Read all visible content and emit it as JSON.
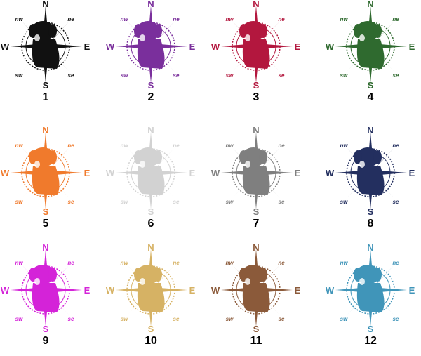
{
  "compass_letters": {
    "n": "N",
    "e": "E",
    "s": "S",
    "w": "W",
    "nw": "nw",
    "ne": "ne",
    "sw": "sw",
    "se": "se"
  },
  "variants": [
    {
      "number": "1",
      "color": "#111111"
    },
    {
      "number": "2",
      "color": "#7a2f9c"
    },
    {
      "number": "3",
      "color": "#b3173e"
    },
    {
      "number": "4",
      "color": "#2f6a2f"
    },
    {
      "number": "5",
      "color": "#f07a2c"
    },
    {
      "number": "6",
      "color": "#d2d2d2"
    },
    {
      "number": "7",
      "color": "#7f7f7f"
    },
    {
      "number": "8",
      "color": "#232f5f"
    },
    {
      "number": "9",
      "color": "#d423d8"
    },
    {
      "number": "10",
      "color": "#d6b264"
    },
    {
      "number": "11",
      "color": "#8b5a3a"
    },
    {
      "number": "12",
      "color": "#4095b9"
    }
  ]
}
